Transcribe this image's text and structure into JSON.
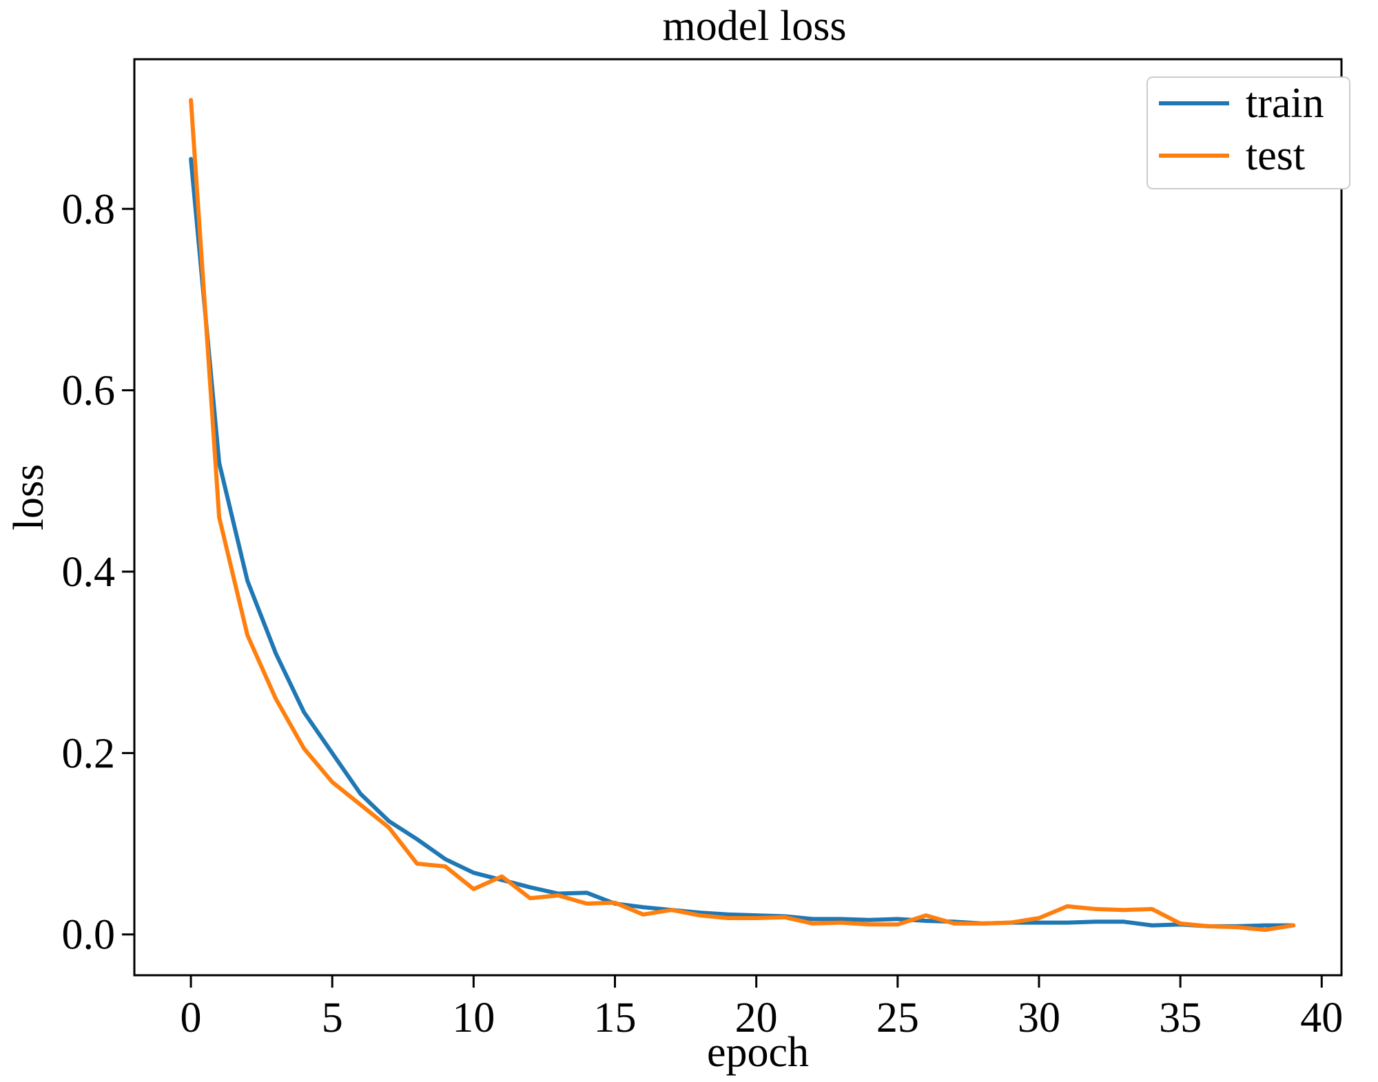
{
  "chart_data": {
    "type": "line",
    "title": "model loss",
    "xlabel": "epoch",
    "ylabel": "loss",
    "xlim": [
      -2,
      40.7
    ],
    "ylim": [
      -0.045,
      0.965
    ],
    "xticks": [
      0,
      5,
      10,
      15,
      20,
      25,
      30,
      35,
      40
    ],
    "yticks": [
      0.0,
      0.2,
      0.4,
      0.6,
      0.8
    ],
    "xtick_labels": [
      "0",
      "5",
      "10",
      "15",
      "20",
      "25",
      "30",
      "35",
      "40"
    ],
    "ytick_labels": [
      "0.0",
      "0.2",
      "0.4",
      "0.6",
      "0.8"
    ],
    "grid": false,
    "legend_position": "top-right",
    "x": [
      0,
      1,
      2,
      3,
      4,
      5,
      6,
      7,
      8,
      9,
      10,
      11,
      12,
      13,
      14,
      15,
      16,
      17,
      18,
      19,
      20,
      21,
      22,
      23,
      24,
      25,
      26,
      27,
      28,
      29,
      30,
      31,
      32,
      33,
      34,
      35,
      36,
      37,
      38,
      39
    ],
    "series": [
      {
        "name": "train",
        "color": "#1f77b4",
        "values": [
          0.855,
          0.52,
          0.39,
          0.31,
          0.245,
          0.2,
          0.155,
          0.125,
          0.105,
          0.083,
          0.068,
          0.06,
          0.052,
          0.045,
          0.046,
          0.034,
          0.03,
          0.027,
          0.024,
          0.022,
          0.021,
          0.02,
          0.017,
          0.017,
          0.016,
          0.017,
          0.015,
          0.014,
          0.012,
          0.013,
          0.013,
          0.013,
          0.014,
          0.014,
          0.01,
          0.011,
          0.009,
          0.009,
          0.01,
          0.01
        ]
      },
      {
        "name": "test",
        "color": "#ff7f0e",
        "values": [
          0.92,
          0.46,
          0.33,
          0.26,
          0.205,
          0.168,
          0.143,
          0.118,
          0.078,
          0.075,
          0.05,
          0.064,
          0.04,
          0.043,
          0.034,
          0.035,
          0.022,
          0.027,
          0.021,
          0.018,
          0.018,
          0.019,
          0.012,
          0.013,
          0.011,
          0.011,
          0.021,
          0.012,
          0.012,
          0.013,
          0.018,
          0.031,
          0.028,
          0.027,
          0.028,
          0.012,
          0.009,
          0.008,
          0.005,
          0.01
        ]
      }
    ]
  }
}
